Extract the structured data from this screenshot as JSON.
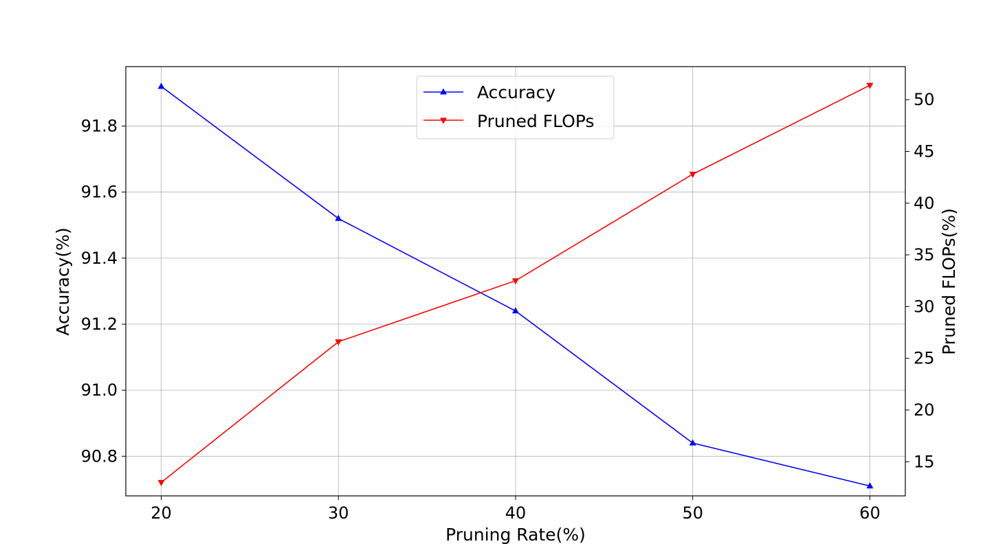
{
  "chart_data": {
    "type": "line",
    "title": "",
    "xlabel": "Pruning Rate(%)",
    "ylabel_left": "Accuracy(%)",
    "ylabel_right": "Pruned FLOPs(%)",
    "x": [
      20,
      30,
      40,
      50,
      60
    ],
    "x_ticks": [
      "20",
      "30",
      "40",
      "50",
      "60"
    ],
    "xlim": [
      18,
      62
    ],
    "ylim_left": [
      90.68,
      91.98
    ],
    "ylim_right": [
      11.7,
      53.2
    ],
    "y_ticks_left": [
      "90.8",
      "91.0",
      "91.2",
      "91.4",
      "91.6",
      "91.8"
    ],
    "y_ticks_right": [
      "15",
      "20",
      "25",
      "30",
      "35",
      "40",
      "45",
      "50"
    ],
    "grid": true,
    "legend_position": "top-center",
    "series": [
      {
        "name": "Accuracy",
        "axis": "left",
        "color": "#0000ff",
        "marker": "triangle-up",
        "values": [
          91.92,
          91.52,
          91.24,
          90.84,
          90.71
        ]
      },
      {
        "name": "Pruned FLOPs",
        "axis": "right",
        "color": "#ff0000",
        "marker": "triangle-down",
        "values": [
          13.0,
          26.6,
          32.5,
          42.8,
          51.4
        ]
      }
    ]
  }
}
